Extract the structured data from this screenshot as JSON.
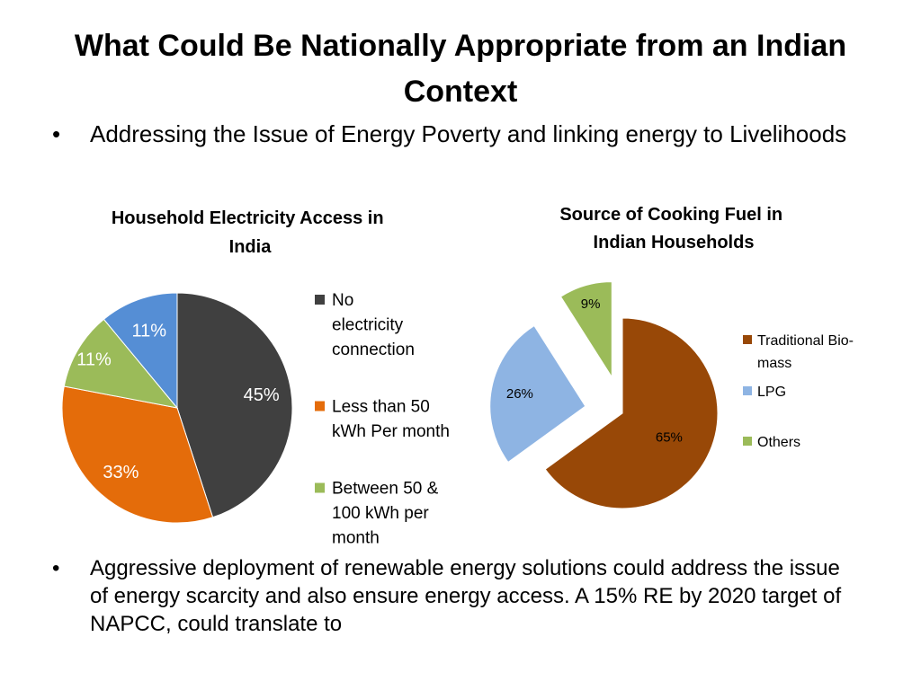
{
  "slide": {
    "title": "What Could Be Nationally Appropriate from an Indian Context",
    "bullet_symbol": "•",
    "bullet1": "Addressing the Issue of Energy Poverty and linking energy to Livelihoods",
    "bullet2": "Aggressive deployment of renewable energy solutions could address the issue of energy scarcity and also ensure energy access. A 15% RE by 2020 target of NAPCC, could translate to"
  },
  "chart_data": [
    {
      "type": "pie",
      "title": "Household Electricity Access in India",
      "categories": [
        "No electricity connection",
        "Less than 50 kWh Per month",
        "Between 50 & 100 kWh per month",
        ""
      ],
      "values": [
        45,
        33,
        11,
        11
      ],
      "labels": [
        "45%",
        "33%",
        "11%",
        "11%"
      ],
      "colors": [
        "#404040",
        "#E46C0A",
        "#9BBB59",
        "#558ED5"
      ],
      "legend": "right"
    },
    {
      "type": "pie",
      "title": "Source of Cooking Fuel in Indian Households",
      "categories": [
        "Traditional Bio-mass",
        "LPG",
        "Others"
      ],
      "values": [
        65,
        26,
        9
      ],
      "labels": [
        "65%",
        "26%",
        "9%"
      ],
      "colors": [
        "#984807",
        "#8EB4E3",
        "#9BBB59"
      ],
      "legend": "right",
      "exploded": [
        "LPG",
        "Others"
      ]
    }
  ]
}
